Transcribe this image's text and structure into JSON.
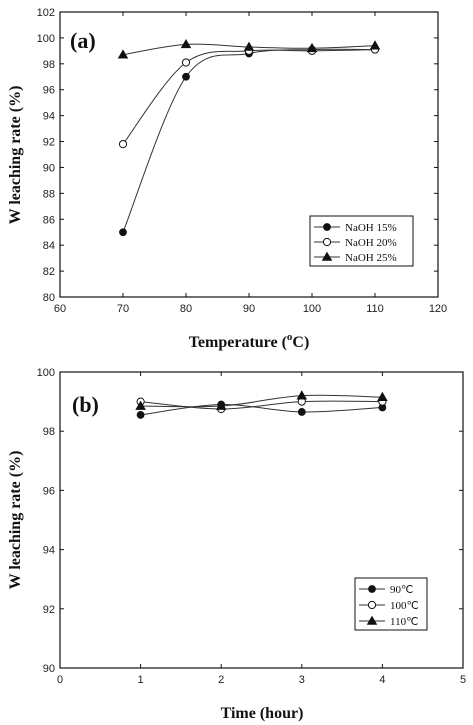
{
  "chart_data": [
    {
      "type": "line",
      "panel_label": "(a)",
      "xlabel_main": "Temperature (",
      "xlabel_sup": "o",
      "xlabel_end": "C)",
      "ylabel": "W leaching rate (%)",
      "xlim": [
        60,
        120
      ],
      "ylim": [
        80,
        102
      ],
      "xticks": [
        60,
        70,
        80,
        90,
        100,
        110,
        120
      ],
      "yticks": [
        80,
        82,
        84,
        86,
        88,
        90,
        92,
        94,
        96,
        98,
        100,
        102
      ],
      "legend_position": "lower-right",
      "series": [
        {
          "name": "NaOH 15%",
          "marker": "filled-circle",
          "x": [
            70,
            80,
            90,
            100,
            110
          ],
          "y": [
            85.0,
            97.0,
            98.8,
            99.1,
            99.1
          ]
        },
        {
          "name": "NaOH 20%",
          "marker": "open-circle",
          "x": [
            70,
            80,
            90,
            100,
            110
          ],
          "y": [
            91.8,
            98.1,
            99.0,
            99.0,
            99.1
          ]
        },
        {
          "name": "NaOH 25%",
          "marker": "filled-triangle",
          "x": [
            70,
            80,
            90,
            100,
            110
          ],
          "y": [
            98.7,
            99.5,
            99.3,
            99.2,
            99.4
          ]
        }
      ]
    },
    {
      "type": "line",
      "panel_label": "(b)",
      "xlabel": "Time (hour)",
      "ylabel": "W leaching rate (%)",
      "xlim": [
        0,
        5
      ],
      "ylim": [
        90,
        100
      ],
      "xticks": [
        0,
        1,
        2,
        3,
        4,
        5
      ],
      "yticks": [
        90,
        92,
        94,
        96,
        98,
        100
      ],
      "legend_position": "lower-right",
      "series": [
        {
          "name": "90℃",
          "marker": "filled-circle",
          "x": [
            1,
            2,
            3,
            4
          ],
          "y": [
            98.55,
            98.9,
            98.65,
            98.8
          ]
        },
        {
          "name": "100℃",
          "marker": "open-circle",
          "x": [
            1,
            2,
            3,
            4
          ],
          "y": [
            99.0,
            98.75,
            99.0,
            99.0
          ]
        },
        {
          "name": "110℃",
          "marker": "filled-triangle",
          "x": [
            1,
            2,
            3,
            4
          ],
          "y": [
            98.85,
            98.85,
            99.2,
            99.15
          ]
        }
      ]
    }
  ]
}
